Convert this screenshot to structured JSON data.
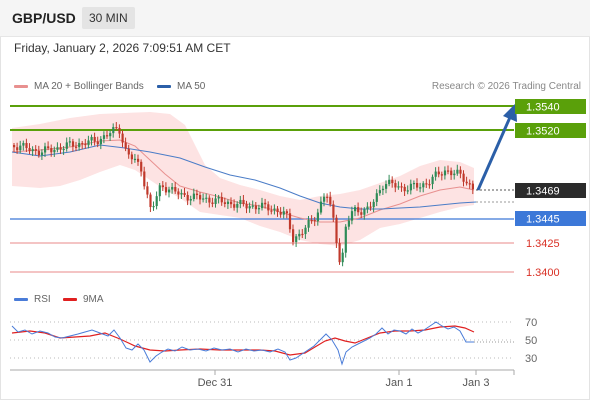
{
  "header": {
    "pair": "GBP/USD",
    "timeframe": "30 MIN"
  },
  "datetime": "Friday, January 2, 2026 7:09:51 AM CET",
  "legend": {
    "ma20_label": "MA 20 + Bollinger Bands",
    "ma50_label": "MA 50",
    "research": "Research © 2026 Trading Central",
    "rsi_label": "RSI",
    "ma9_label": "9MA"
  },
  "colors": {
    "up_candle": "#2e8b57",
    "down_candle": "#c0392b",
    "band_fill": "#fde3e3",
    "ma20": "#e8908f",
    "ma50": "#4a7cc7",
    "green_level": "#5aa00a",
    "blue_level": "#3c78d8",
    "red_level": "#e88a8a",
    "arrow": "#2b5fa8",
    "current_price_bg": "#2b2b2b",
    "rsi": "#4a7cd8",
    "ma9": "#e02020"
  },
  "levels": [
    {
      "value": "1.3540",
      "kind": "resistance"
    },
    {
      "value": "1.3520",
      "kind": "resistance"
    },
    {
      "value": "1.3469",
      "kind": "current"
    },
    {
      "value": "1.3445",
      "kind": "pivot"
    },
    {
      "value": "1.3425",
      "kind": "support"
    },
    {
      "value": "1.3400",
      "kind": "support"
    }
  ],
  "rsi_levels": [
    "70",
    "50",
    "30"
  ],
  "x_axis": [
    "Dec 31",
    "Jan 1",
    "Jan 3"
  ]
}
